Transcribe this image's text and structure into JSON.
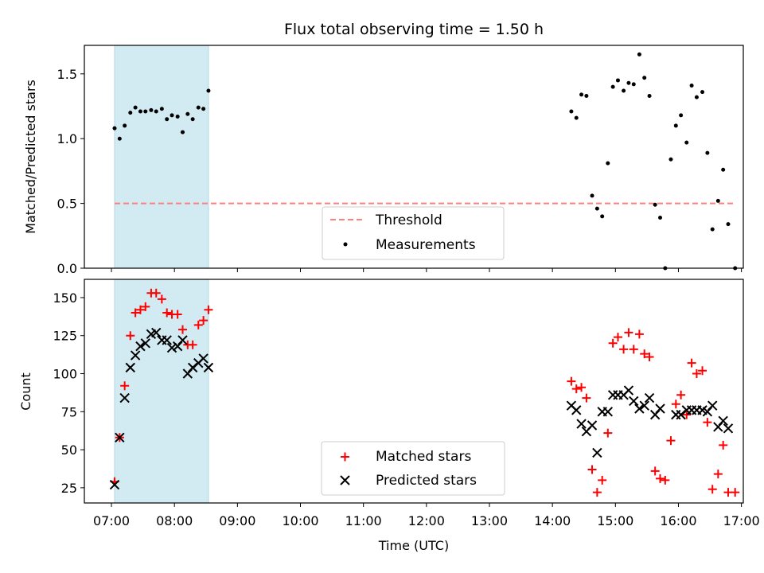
{
  "chart_data": [
    {
      "type": "scatter",
      "title": "Flux total observing time = 1.50 h",
      "ylabel": "Matched/Predicted stars",
      "xlabel": "",
      "xlim": [
        6.57,
        17.03
      ],
      "ylim": [
        0,
        1.72
      ],
      "yticks": [
        0.0,
        0.5,
        1.0,
        1.5
      ],
      "ytick_labels": [
        "0.0",
        "0.5",
        "1.0",
        "1.5"
      ],
      "span": [
        7.05,
        8.54
      ],
      "span_color": "#add8e6",
      "threshold": {
        "name": "Threshold",
        "value": 0.5,
        "x": [
          7.05,
          16.9
        ],
        "color": "#ff7f7f"
      },
      "series": [
        {
          "name": "Measurements",
          "color": "#000000",
          "marker": "dot",
          "x": [
            7.05,
            7.13,
            7.21,
            7.3,
            7.38,
            7.46,
            7.54,
            7.63,
            7.71,
            7.8,
            7.88,
            7.96,
            8.05,
            8.13,
            8.21,
            8.29,
            8.38,
            8.46,
            8.54,
            14.3,
            14.38,
            14.46,
            14.54,
            14.63,
            14.71,
            14.79,
            14.88,
            14.96,
            15.04,
            15.13,
            15.21,
            15.29,
            15.38,
            15.46,
            15.54,
            15.63,
            15.71,
            15.79,
            15.88,
            15.96,
            16.04,
            16.13,
            16.21,
            16.29,
            16.38,
            16.46,
            16.54,
            16.63,
            16.71,
            16.79,
            16.9
          ],
          "y": [
            1.08,
            1.0,
            1.1,
            1.2,
            1.24,
            1.21,
            1.21,
            1.22,
            1.21,
            1.23,
            1.15,
            1.18,
            1.17,
            1.05,
            1.19,
            1.15,
            1.24,
            1.23,
            1.37,
            1.21,
            1.16,
            1.34,
            1.33,
            0.56,
            0.46,
            0.4,
            0.81,
            1.4,
            1.45,
            1.37,
            1.43,
            1.42,
            1.65,
            1.47,
            1.33,
            0.49,
            0.39,
            0.0,
            0.84,
            1.1,
            1.18,
            0.97,
            1.41,
            1.32,
            1.36,
            0.89,
            0.3,
            0.52,
            0.76,
            0.34,
            0.0
          ]
        }
      ],
      "legend": [
        "Threshold",
        "Measurements"
      ],
      "legend_position": "lower-center"
    },
    {
      "type": "scatter",
      "title": "",
      "xlabel": "Time (UTC)",
      "ylabel": "Count",
      "xlim": [
        6.57,
        17.03
      ],
      "ylim": [
        15,
        162
      ],
      "yticks": [
        25,
        50,
        75,
        100,
        125,
        150
      ],
      "ytick_labels": [
        "25",
        "50",
        "75",
        "100",
        "125",
        "150"
      ],
      "xticks": [
        7,
        8,
        9,
        10,
        11,
        12,
        13,
        14,
        15,
        16,
        17
      ],
      "xtick_labels": [
        "07:00",
        "08:00",
        "09:00",
        "10:00",
        "11:00",
        "12:00",
        "13:00",
        "14:00",
        "15:00",
        "16:00",
        "17:00"
      ],
      "span": [
        7.05,
        8.54
      ],
      "span_color": "#add8e6",
      "series": [
        {
          "name": "Matched stars",
          "color": "#ff0000",
          "marker": "plus",
          "x": [
            7.05,
            7.13,
            7.21,
            7.3,
            7.38,
            7.46,
            7.54,
            7.63,
            7.71,
            7.8,
            7.88,
            7.96,
            8.05,
            8.13,
            8.21,
            8.29,
            8.38,
            8.46,
            8.54,
            14.3,
            14.38,
            14.46,
            14.54,
            14.63,
            14.71,
            14.79,
            14.88,
            14.96,
            15.04,
            15.13,
            15.21,
            15.29,
            15.38,
            15.46,
            15.54,
            15.63,
            15.71,
            15.79,
            15.88,
            15.96,
            16.04,
            16.13,
            16.21,
            16.29,
            16.38,
            16.46,
            16.54,
            16.63,
            16.71,
            16.79,
            16.9
          ],
          "y": [
            29,
            58,
            92,
            125,
            140,
            142,
            144,
            153,
            153,
            149,
            140,
            139,
            139,
            129,
            119,
            119,
            132,
            135,
            142,
            95,
            90,
            91,
            84,
            37,
            22,
            30,
            61,
            120,
            124,
            116,
            127,
            116,
            126,
            113,
            111,
            36,
            31,
            30,
            56,
            80,
            86,
            73,
            107,
            100,
            102,
            68,
            24,
            34,
            53,
            22,
            22
          ]
        },
        {
          "name": "Predicted stars",
          "color": "#000000",
          "marker": "x",
          "x": [
            7.05,
            7.13,
            7.21,
            7.3,
            7.38,
            7.46,
            7.54,
            7.63,
            7.71,
            7.8,
            7.88,
            7.96,
            8.05,
            8.13,
            8.21,
            8.29,
            8.38,
            8.46,
            8.54,
            14.3,
            14.38,
            14.46,
            14.54,
            14.63,
            14.71,
            14.79,
            14.88,
            14.96,
            15.04,
            15.13,
            15.21,
            15.29,
            15.38,
            15.46,
            15.54,
            15.63,
            15.71,
            15.79,
            15.88,
            15.96,
            16.04,
            16.13,
            16.21,
            16.29,
            16.38,
            16.46,
            16.54,
            16.63,
            16.71,
            16.79,
            16.9
          ],
          "y": [
            27,
            58,
            84,
            104,
            112,
            118,
            120,
            126,
            127,
            122,
            122,
            117,
            118,
            122,
            100,
            104,
            107,
            110,
            104,
            79,
            76,
            67,
            62,
            66,
            48,
            75,
            75,
            86,
            86,
            86,
            89,
            82,
            77,
            79,
            84,
            73,
            77,
            null,
            null,
            73,
            73,
            76,
            76,
            76,
            76,
            75,
            79,
            65,
            69,
            64,
            null
          ]
        }
      ],
      "legend": [
        "Matched stars",
        "Predicted stars"
      ],
      "legend_position": "lower-center"
    }
  ]
}
